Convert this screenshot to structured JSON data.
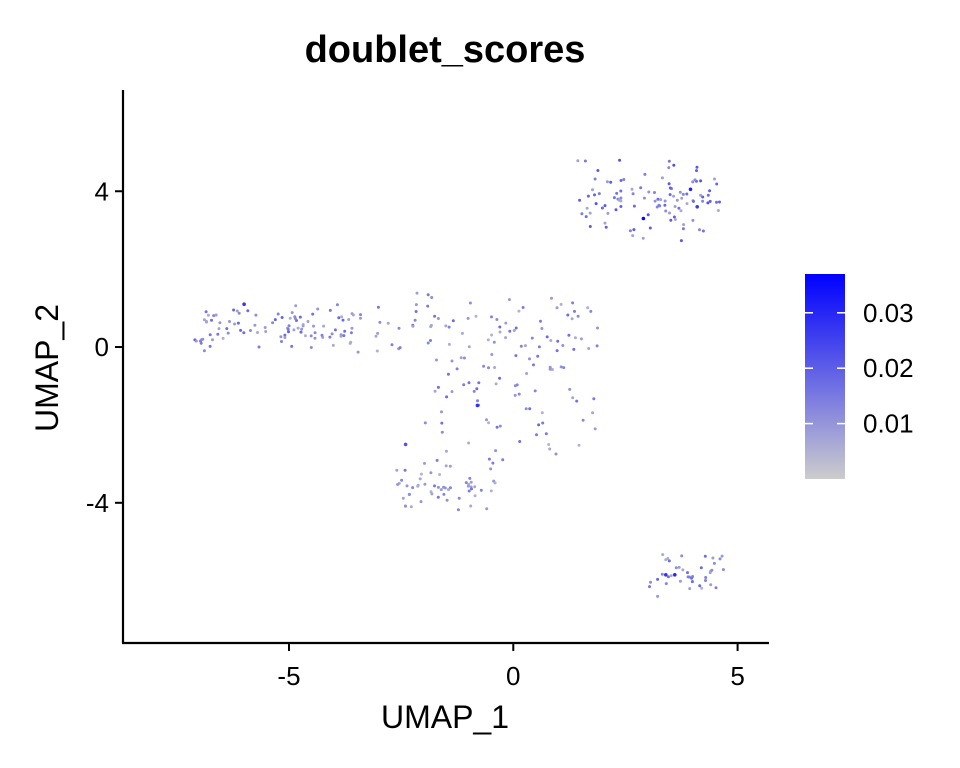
{
  "chart_data": {
    "type": "scatter",
    "title": "doublet_scores",
    "xlabel": "UMAP_1",
    "ylabel": "UMAP_2",
    "xlim": [
      -8.7,
      5.7
    ],
    "ylim": [
      -7.6,
      6.6
    ],
    "x_ticks": [
      -5,
      0,
      5
    ],
    "x_tick_labels": [
      "-5",
      "0",
      "5"
    ],
    "y_ticks": [
      -4,
      0,
      4
    ],
    "y_tick_labels": [
      "-4",
      "0",
      "4"
    ],
    "grid": false,
    "legend": {
      "placement": "right",
      "type": "colorbar",
      "range": [
        0.0,
        0.037
      ],
      "ticks": [
        0.01,
        0.02,
        0.03
      ],
      "tick_labels": [
        "0.01",
        "0.02",
        "0.03"
      ],
      "low_color": "#cccccc",
      "high_color": "#0000ff"
    },
    "clusters": [
      {
        "name_hint": "left-arm",
        "x_range": [
          -7.1,
          -3.6
        ],
        "y_center": 0.5,
        "y_spread": 0.45,
        "count": 95,
        "level": 0.012
      },
      {
        "name_hint": "center-band",
        "x_range": [
          -3.6,
          1.9
        ],
        "y_center": 0.7,
        "y_spread": 0.6,
        "count": 70,
        "level": 0.011
      },
      {
        "name_hint": "center-lower",
        "x_range": [
          -2.0,
          2.0
        ],
        "y_center": -1.2,
        "y_spread": 1.4,
        "count": 85,
        "level": 0.011
      },
      {
        "name_hint": "lower-v",
        "x_range": [
          -2.6,
          -0.4
        ],
        "y_center": -3.6,
        "y_spread": 0.5,
        "count": 55,
        "level": 0.01
      },
      {
        "name_hint": "upper-right",
        "x_range": [
          1.4,
          4.6
        ],
        "y_center": 3.8,
        "y_spread": 0.75,
        "count": 105,
        "level": 0.014
      },
      {
        "name_hint": "lower-right",
        "x_range": [
          3.0,
          4.7
        ],
        "y_center": -5.8,
        "y_spread": 0.45,
        "count": 40,
        "level": 0.012
      }
    ],
    "highlight_points": [
      {
        "x": 2.9,
        "y": 3.3,
        "value": 0.036
      },
      {
        "x": 3.95,
        "y": 4.05,
        "value": 0.031
      },
      {
        "x": -6.0,
        "y": 1.1,
        "value": 0.027
      },
      {
        "x": -0.8,
        "y": -1.5,
        "value": 0.028
      },
      {
        "x": 3.6,
        "y": -5.85,
        "value": 0.03
      },
      {
        "x": 3.4,
        "y": -5.85,
        "value": 0.028
      },
      {
        "x": 4.1,
        "y": 3.6,
        "value": 0.026
      },
      {
        "x": -2.4,
        "y": -2.5,
        "value": 0.022
      }
    ]
  }
}
